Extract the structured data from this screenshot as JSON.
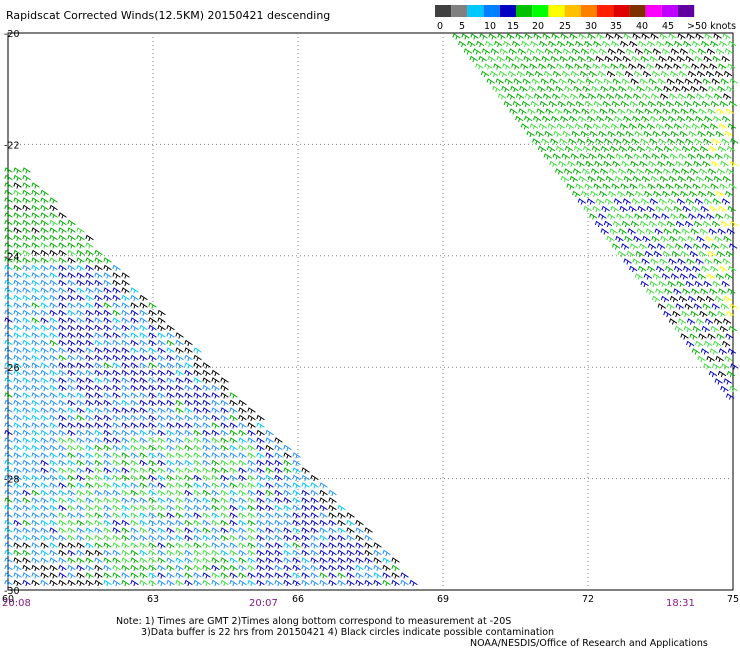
{
  "title": "Rapidscat Corrected Winds(12.5KM) 20150421 descending",
  "legend": {
    "labels": [
      "0",
      "5",
      "10",
      "15",
      "20",
      "25",
      "30",
      "35",
      "40",
      "45",
      ">50 knots"
    ],
    "colors": [
      "#404040",
      "#808080",
      "#00c8ff",
      "#0080ff",
      "#0000c0",
      "#00c000",
      "#00ff00",
      "#ffff00",
      "#ffc000",
      "#ff8000",
      "#ff2000",
      "#e00000",
      "#803000",
      "#ff00ff",
      "#c000ff",
      "#6000a0"
    ]
  },
  "lat_labels": [
    "-20",
    "-22",
    "-24",
    "-26",
    "-28",
    "-30"
  ],
  "lon_labels": [
    "60",
    "63",
    "66",
    "69",
    "72",
    "75"
  ],
  "times": [
    "20:08",
    "20:07",
    "18:31"
  ],
  "notes": {
    "line1": "Note: 1) Times are GMT 2)Times along bottom correspond to measurement at -20S",
    "line2": "3)Data buffer is 22 hrs from 20150421 4) Black circles indicate possible contamination",
    "line3": "NOAA/NESDIS/Office of Research and Applications"
  },
  "colors": {
    "grid": "#808080",
    "barb_black": "#000000",
    "barb_green": "#00b000",
    "barb_lightgreen": "#40e040",
    "barb_blue": "#0000c8",
    "barb_lightblue": "#1e90ff",
    "barb_cyan": "#00c8ff",
    "barb_yellow": "#ffff00"
  }
}
